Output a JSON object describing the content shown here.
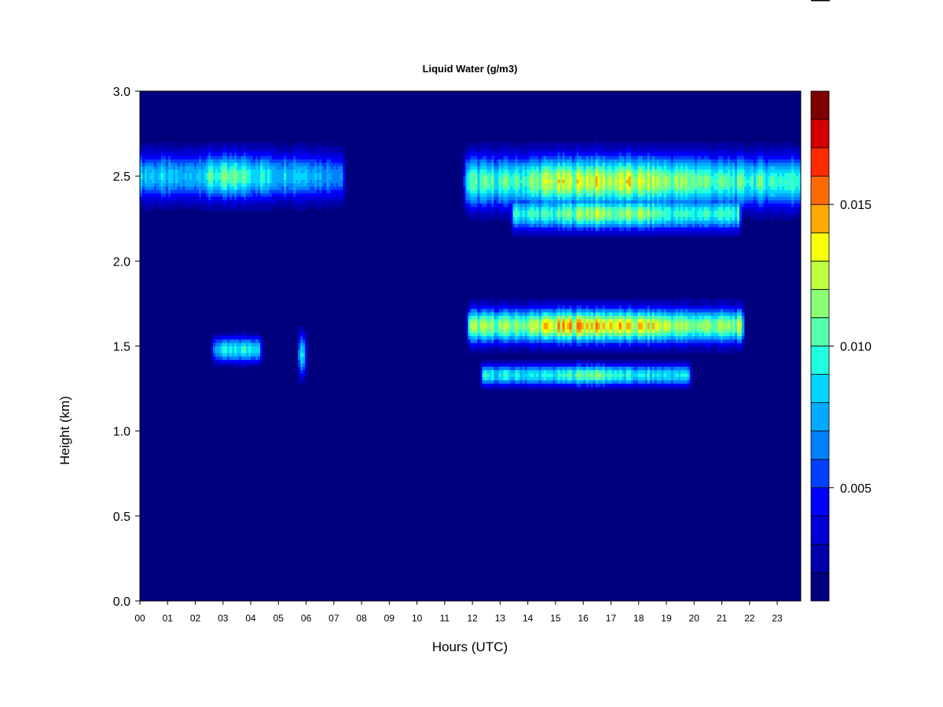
{
  "chart_data": {
    "type": "heatmap",
    "title": "Liquid Water (g/m3)",
    "xlabel": "Hours (UTC)",
    "ylabel": "Height (km)",
    "xlim": [
      0,
      23.85
    ],
    "ylim": [
      0,
      3.0
    ],
    "x_ticks": [
      "00",
      "01",
      "02",
      "03",
      "04",
      "05",
      "06",
      "07",
      "08",
      "09",
      "10",
      "11",
      "12",
      "13",
      "14",
      "15",
      "16",
      "17",
      "18",
      "19",
      "20",
      "21",
      "22",
      "23"
    ],
    "y_ticks": [
      "0.0",
      "0.5",
      "1.0",
      "1.5",
      "2.0",
      "2.5",
      "3.0"
    ],
    "colorbar": {
      "min": 0.001,
      "max": 0.019,
      "levels": 18,
      "ticks": [
        0.005,
        0.01,
        0.015
      ],
      "tick_labels": [
        "0.005",
        "0.010",
        "0.015"
      ],
      "colors": [
        "#00007F",
        "#0000AA",
        "#0000D4",
        "#0000FF",
        "#0040FF",
        "#0080FF",
        "#00AAFF",
        "#00D4FF",
        "#20FFDF",
        "#55FFAA",
        "#8AFF75",
        "#BFFF40",
        "#F5FF0A",
        "#FFAA00",
        "#FF6A00",
        "#FF2A00",
        "#D40000",
        "#7F0000"
      ]
    },
    "background_value": 0.001,
    "cloud_layers": [
      {
        "x_range": [
          0.0,
          7.3
        ],
        "y_center": 2.5,
        "thickness": 0.22,
        "peak": 0.0095,
        "bursts": [
          [
            0.4,
            0.0095
          ],
          [
            1.0,
            0.008
          ],
          [
            2.9,
            0.0115
          ],
          [
            3.6,
            0.0118
          ],
          [
            4.0,
            0.011
          ],
          [
            5.7,
            0.01
          ]
        ]
      },
      {
        "x_range": [
          11.8,
          23.85
        ],
        "y_center": 2.47,
        "thickness": 0.24,
        "peak": 0.0135,
        "bursts": [
          [
            15.0,
            0.014
          ],
          [
            16.3,
            0.015
          ],
          [
            17.5,
            0.0145
          ],
          [
            18.5,
            0.014
          ],
          [
            19.8,
            0.013
          ]
        ]
      },
      {
        "x_range": [
          13.5,
          21.6
        ],
        "y_center": 2.28,
        "thickness": 0.15,
        "peak": 0.013,
        "bursts": [
          [
            16.3,
            0.014
          ],
          [
            18.0,
            0.013
          ]
        ]
      },
      {
        "x_range": [
          2.7,
          4.3
        ],
        "y_center": 1.48,
        "thickness": 0.12,
        "peak": 0.0095,
        "bursts": [
          [
            3.2,
            0.009
          ],
          [
            4.1,
            0.011
          ]
        ]
      },
      {
        "x_range": [
          5.8,
          5.9
        ],
        "y_center": 1.45,
        "thickness": 0.2,
        "peak": 0.01,
        "bursts": [
          [
            5.85,
            0.011
          ]
        ]
      },
      {
        "x_range": [
          11.9,
          21.7
        ],
        "y_center": 1.62,
        "thickness": 0.16,
        "peak": 0.0155,
        "bursts": [
          [
            15.0,
            0.015
          ],
          [
            16.0,
            0.0165
          ],
          [
            17.0,
            0.016
          ],
          [
            18.3,
            0.015
          ],
          [
            19.5,
            0.013
          ]
        ]
      },
      {
        "x_range": [
          12.4,
          19.8
        ],
        "y_center": 1.33,
        "thickness": 0.1,
        "peak": 0.012,
        "bursts": [
          [
            16.3,
            0.013
          ]
        ]
      }
    ]
  }
}
